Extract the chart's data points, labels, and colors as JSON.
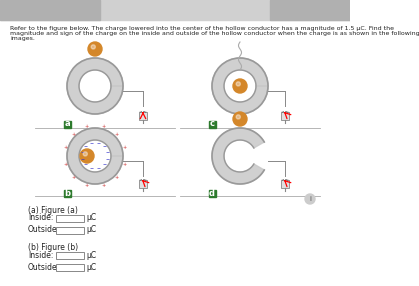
{
  "background_color": "#f0f0f0",
  "page_bg": "#ffffff",
  "title_line1": "Refer to the figure below. The charge lowered into the center of the hollow conductor has a magnitude of 1.5 μC. Find the",
  "title_line2": "magnitude and sign of the charge on the inside and outside of the hollow conductor when the charge is as shown in the following",
  "title_line3": "images.",
  "fig_labels": [
    "a",
    "c",
    "b",
    "d"
  ],
  "section_a_label": "(a) Figure (a)",
  "section_b_label": "(b) Figure (b)",
  "inside_label": "Inside:",
  "outside_label": "Outside:",
  "unit": "μC",
  "conductor_color": "#c8c8c8",
  "conductor_edge": "#999999",
  "charge_color_orange": "#d4872a",
  "charge_color_dark": "#8b6030",
  "plus_color": "#cc3333",
  "minus_color": "#3333cc",
  "box_bg": "#ffffff",
  "box_edge": "#888888",
  "label_green_bg": "#2d7a2d",
  "label_text_color": "#ffffff",
  "nav_bar_color": "#d0d0d0",
  "nav_bar_side_color": "#b0b0b0"
}
